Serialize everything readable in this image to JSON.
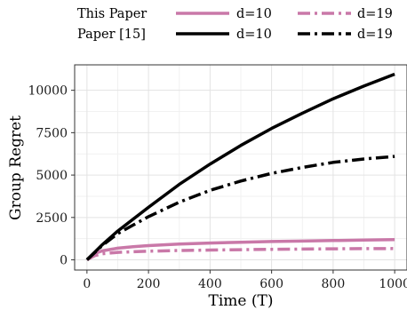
{
  "chart_data": {
    "type": "line",
    "xlabel": "Time (T)",
    "ylabel": "Group Regret",
    "xlim": [
      -40,
      1040
    ],
    "ylim": [
      -600,
      11500
    ],
    "xticks": [
      0,
      200,
      400,
      600,
      800,
      1000
    ],
    "yticks": [
      0,
      2500,
      5000,
      7500,
      10000
    ],
    "x_tick_labels": [
      "0",
      "200",
      "400",
      "600",
      "800",
      "1000"
    ],
    "y_tick_labels": [
      "0",
      "2500",
      "5000",
      "7500",
      "10000"
    ],
    "grid": true,
    "legend": {
      "placement": "top",
      "rows": [
        {
          "label": "This Paper",
          "entries": [
            "d=10",
            "d=19"
          ]
        },
        {
          "label": "Paper [15]",
          "entries": [
            "d=10",
            "d=19"
          ]
        }
      ]
    },
    "series": [
      {
        "name": "d=10",
        "group": "This Paper",
        "color": "#c978a8",
        "dash": "solid",
        "x": [
          0,
          25,
          50,
          100,
          150,
          200,
          300,
          400,
          500,
          600,
          700,
          800,
          900,
          1000
        ],
        "y": [
          0,
          380,
          530,
          690,
          780,
          840,
          930,
          990,
          1040,
          1080,
          1110,
          1140,
          1165,
          1190
        ]
      },
      {
        "name": "d=19",
        "group": "This Paper",
        "color": "#c978a8",
        "dash": "dashdot",
        "x": [
          0,
          25,
          50,
          100,
          150,
          200,
          300,
          400,
          500,
          600,
          700,
          800,
          900,
          1000
        ],
        "y": [
          0,
          250,
          360,
          440,
          480,
          510,
          550,
          580,
          600,
          620,
          635,
          650,
          660,
          670
        ]
      },
      {
        "name": "d=10",
        "group": "Paper [15]",
        "color": "#000000",
        "dash": "solid",
        "x": [
          0,
          50,
          100,
          200,
          300,
          400,
          500,
          600,
          700,
          800,
          900,
          1000
        ],
        "y": [
          0,
          900,
          1700,
          3100,
          4450,
          5650,
          6750,
          7750,
          8650,
          9500,
          10250,
          10950
        ]
      },
      {
        "name": "d=19",
        "group": "Paper [15]",
        "color": "#000000",
        "dash": "dashdot",
        "x": [
          0,
          50,
          100,
          150,
          200,
          300,
          400,
          500,
          600,
          700,
          800,
          900,
          1000
        ],
        "y": [
          0,
          850,
          1550,
          2050,
          2550,
          3400,
          4100,
          4650,
          5100,
          5450,
          5750,
          5950,
          6100
        ]
      }
    ]
  }
}
